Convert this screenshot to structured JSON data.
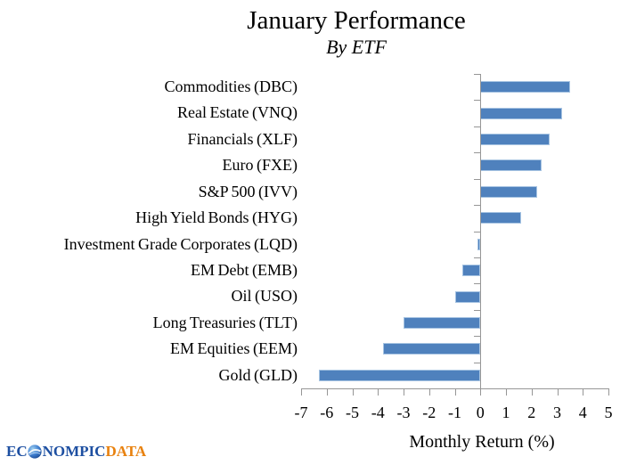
{
  "header": {
    "title": "January Performance",
    "subtitle": "By ETF"
  },
  "chart_data": {
    "type": "bar",
    "orientation": "horizontal",
    "title": "January Performance",
    "subtitle": "By ETF",
    "categories": [
      "Commodities (DBC)",
      "Real Estate (VNQ)",
      "Financials (XLF)",
      "Euro (FXE)",
      "S&P 500 (IVV)",
      "High Yield Bonds (HYG)",
      "Investment Grade Corporates (LQD)",
      "EM Debt (EMB)",
      "Oil (USO)",
      "Long Treasuries (TLT)",
      "EM Equities (EEM)",
      "Gold (GLD)"
    ],
    "values": [
      3.5,
      3.2,
      2.7,
      2.4,
      2.2,
      1.6,
      -0.1,
      -0.7,
      -1.0,
      -3.0,
      -3.8,
      -6.3
    ],
    "xlabel": "Monthly Return (%)",
    "xlim": [
      -7,
      5
    ],
    "xticks": [
      -7,
      -6,
      -5,
      -4,
      -3,
      -2,
      -1,
      0,
      1,
      2,
      3,
      4,
      5
    ],
    "grid": false,
    "legend": "none",
    "bar_color": "#4f81bd",
    "bar_border_color": "#a7c4e2",
    "axis_color": "#969696"
  },
  "logo": {
    "text_left": "EC",
    "text_mid": "NOMPIC",
    "text_right": "DATA",
    "color_blue": "#1d4fa1",
    "color_orange": "#e8810e"
  }
}
